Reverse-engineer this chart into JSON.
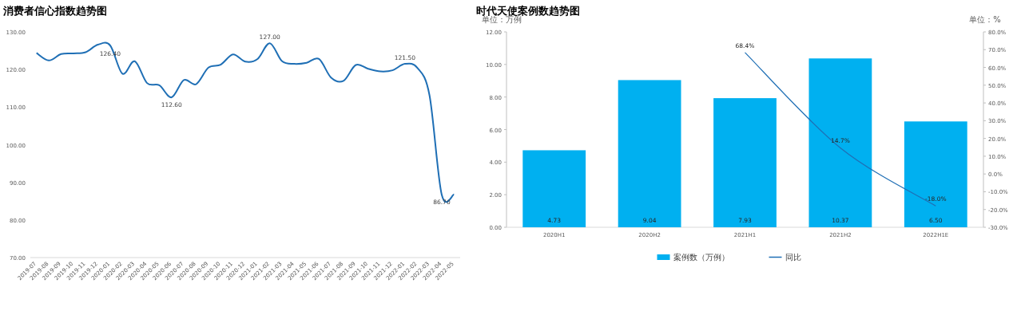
{
  "chart_data": [
    {
      "type": "line",
      "title": "消费者信心指数趋势图",
      "color": "#1f6fb5",
      "categories": [
        "2019-07",
        "2019-08",
        "2019-09",
        "2019-10",
        "2019-11",
        "2019-12",
        "2020-01",
        "2020-02",
        "2020-03",
        "2020-04",
        "2020-05",
        "2020-06",
        "2020-07",
        "2020-08",
        "2020-09",
        "2020-10",
        "2020-11",
        "2020-12",
        "2021-01",
        "2021-02",
        "2021-03",
        "2021-04",
        "2021-05",
        "2021-06",
        "2021-07",
        "2021-08",
        "2021-09",
        "2021-10",
        "2021-11",
        "2021-12",
        "2022-01",
        "2022-02",
        "2022-03",
        "2022-04",
        "2022-05"
      ],
      "values": [
        124.4,
        122.4,
        124.1,
        124.3,
        124.6,
        126.6,
        126.4,
        118.9,
        122.2,
        116.4,
        115.8,
        112.6,
        117.2,
        116.1,
        120.5,
        121.3,
        124.0,
        122.1,
        122.8,
        127.0,
        122.2,
        121.5,
        121.8,
        122.8,
        117.8,
        117.0,
        121.2,
        120.2,
        119.5,
        119.8,
        121.5,
        120.5,
        113.2,
        86.7,
        86.8
      ],
      "value_labels": [
        null,
        null,
        null,
        null,
        null,
        null,
        "126.40",
        null,
        null,
        null,
        null,
        "112.60",
        null,
        null,
        null,
        null,
        null,
        null,
        null,
        "127.00",
        null,
        null,
        null,
        null,
        null,
        null,
        null,
        null,
        null,
        null,
        "121.50",
        null,
        null,
        "86.70",
        null
      ],
      "ylim": [
        70,
        130
      ],
      "yticks": [
        {
          "value": 70,
          "label": "70.00"
        },
        {
          "value": 80,
          "label": "80.00"
        },
        {
          "value": 90,
          "label": "90.00"
        },
        {
          "value": 100,
          "label": "100.00"
        },
        {
          "value": 110,
          "label": "110.00"
        },
        {
          "value": 120,
          "label": "120.00"
        },
        {
          "value": 130,
          "label": "130.00"
        }
      ]
    },
    {
      "type": "bar",
      "title": "时代天使案例数趋势图",
      "ylabel": "单位：万例",
      "y2label": "单位：%",
      "legend": "bottom",
      "categories": [
        "2020H1",
        "2020H2",
        "2021H1",
        "2021H2",
        "2022H1E"
      ],
      "series": [
        {
          "name": "案例数（万例）",
          "type": "bar",
          "color": "#00b0f0",
          "values": [
            4.73,
            9.04,
            7.93,
            10.37,
            6.5
          ],
          "value_labels": [
            "4.73",
            "9.04",
            "7.93",
            "10.37",
            "6.50"
          ]
        },
        {
          "name": "同比",
          "type": "line",
          "axis": "y2",
          "color": "#1f6fb5",
          "values": [
            null,
            null,
            68.4,
            14.7,
            -18.0
          ],
          "value_labels": [
            null,
            null,
            "68.4%",
            "14.7%",
            "-18.0%"
          ]
        }
      ],
      "ylim": [
        0,
        12
      ],
      "yticks": [
        {
          "value": 0,
          "label": "0.00"
        },
        {
          "value": 2,
          "label": "2.00"
        },
        {
          "value": 4,
          "label": "4.00"
        },
        {
          "value": 6,
          "label": "6.00"
        },
        {
          "value": 8,
          "label": "8.00"
        },
        {
          "value": 10,
          "label": "10.00"
        },
        {
          "value": 12,
          "label": "12.00"
        }
      ],
      "y2lim": [
        -30,
        80
      ],
      "y2ticks": [
        {
          "value": -30,
          "label": "-30.0%"
        },
        {
          "value": -20,
          "label": "-20.0%"
        },
        {
          "value": -10,
          "label": "-10.0%"
        },
        {
          "value": 0,
          "label": "0.0%"
        },
        {
          "value": 10,
          "label": "10.0%"
        },
        {
          "value": 20,
          "label": "20.0%"
        },
        {
          "value": 30,
          "label": "30.0%"
        },
        {
          "value": 40,
          "label": "40.0%"
        },
        {
          "value": 50,
          "label": "50.0%"
        },
        {
          "value": 60,
          "label": "60.0%"
        },
        {
          "value": 70,
          "label": "70.0%"
        },
        {
          "value": 80,
          "label": "80.0%"
        }
      ]
    }
  ]
}
